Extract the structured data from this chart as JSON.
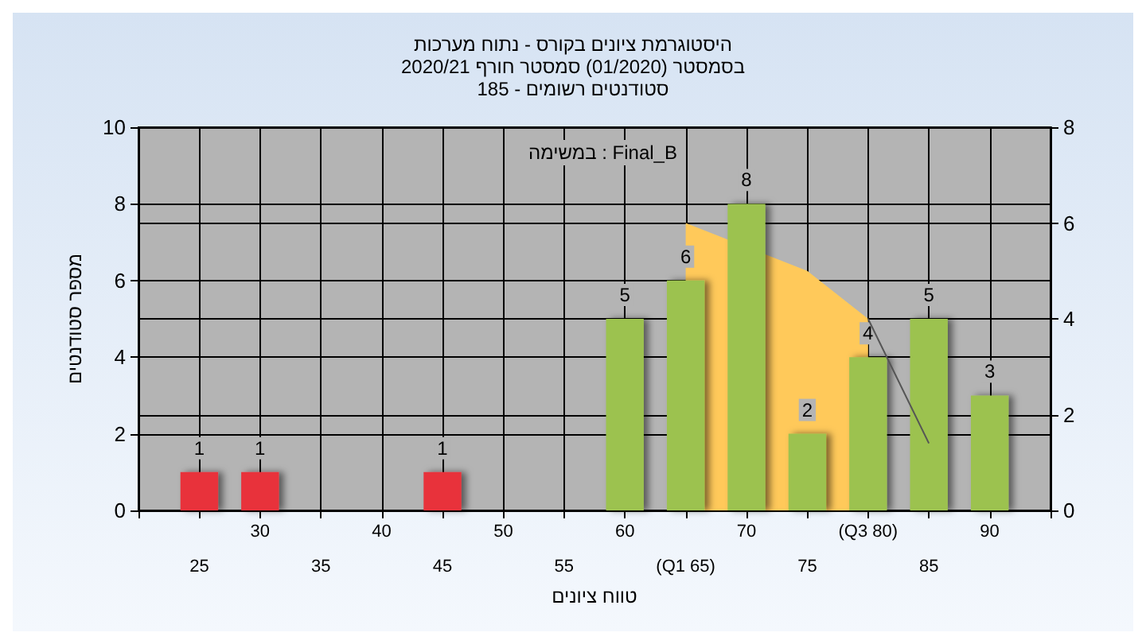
{
  "chart_data": {
    "type": "bar",
    "title": "היסטוגרמת ציונים בקורס - נתוח מערכות\nבסמסטר (01/2020) סמסטר חורף 2020/21\n185 - סטודנטים רשומים",
    "xlabel": "טווח ציונים",
    "ylabel": "מספר סטודנטים",
    "annotations": [
      "במשימה : Final_B"
    ],
    "categories": [
      null,
      "25",
      "30",
      "35",
      "40",
      "45",
      "50",
      "55",
      "60",
      "(Q1 65)",
      "70",
      "75",
      "(Q3 80)",
      "85",
      "90",
      null
    ],
    "series": [
      {
        "values": [
          null,
          1,
          1,
          null,
          null,
          1,
          null,
          null,
          5,
          6,
          8,
          2,
          4,
          5,
          3,
          null
        ],
        "colors": [
          null,
          "#e8323a",
          "#e8323a",
          null,
          null,
          "#e8323a",
          null,
          null,
          "#9cc24f",
          "#9cc24f",
          "#9cc24f",
          "#9cc24f",
          "#9cc24f",
          "#9cc24f",
          "#9cc24f",
          null
        ],
        "data_labels": true
      },
      {
        "type": "area",
        "axis": "y2",
        "color": "#ffc95a",
        "values": [
          null,
          null,
          null,
          null,
          null,
          null,
          null,
          null,
          null,
          6,
          null,
          5,
          4,
          null,
          null,
          null
        ]
      },
      {
        "type": "line",
        "axis": "y2",
        "color": "#555555",
        "values": [
          null,
          null,
          null,
          null,
          null,
          null,
          null,
          null,
          null,
          null,
          null,
          null,
          4,
          1.4,
          null,
          null
        ]
      }
    ],
    "ylim": [
      0,
      10
    ],
    "yticks": [
      0,
      2,
      4,
      6,
      8,
      10
    ],
    "y2lim": [
      0,
      8
    ],
    "y2ticks": [
      0,
      2,
      4,
      6,
      8
    ],
    "grid": true
  }
}
